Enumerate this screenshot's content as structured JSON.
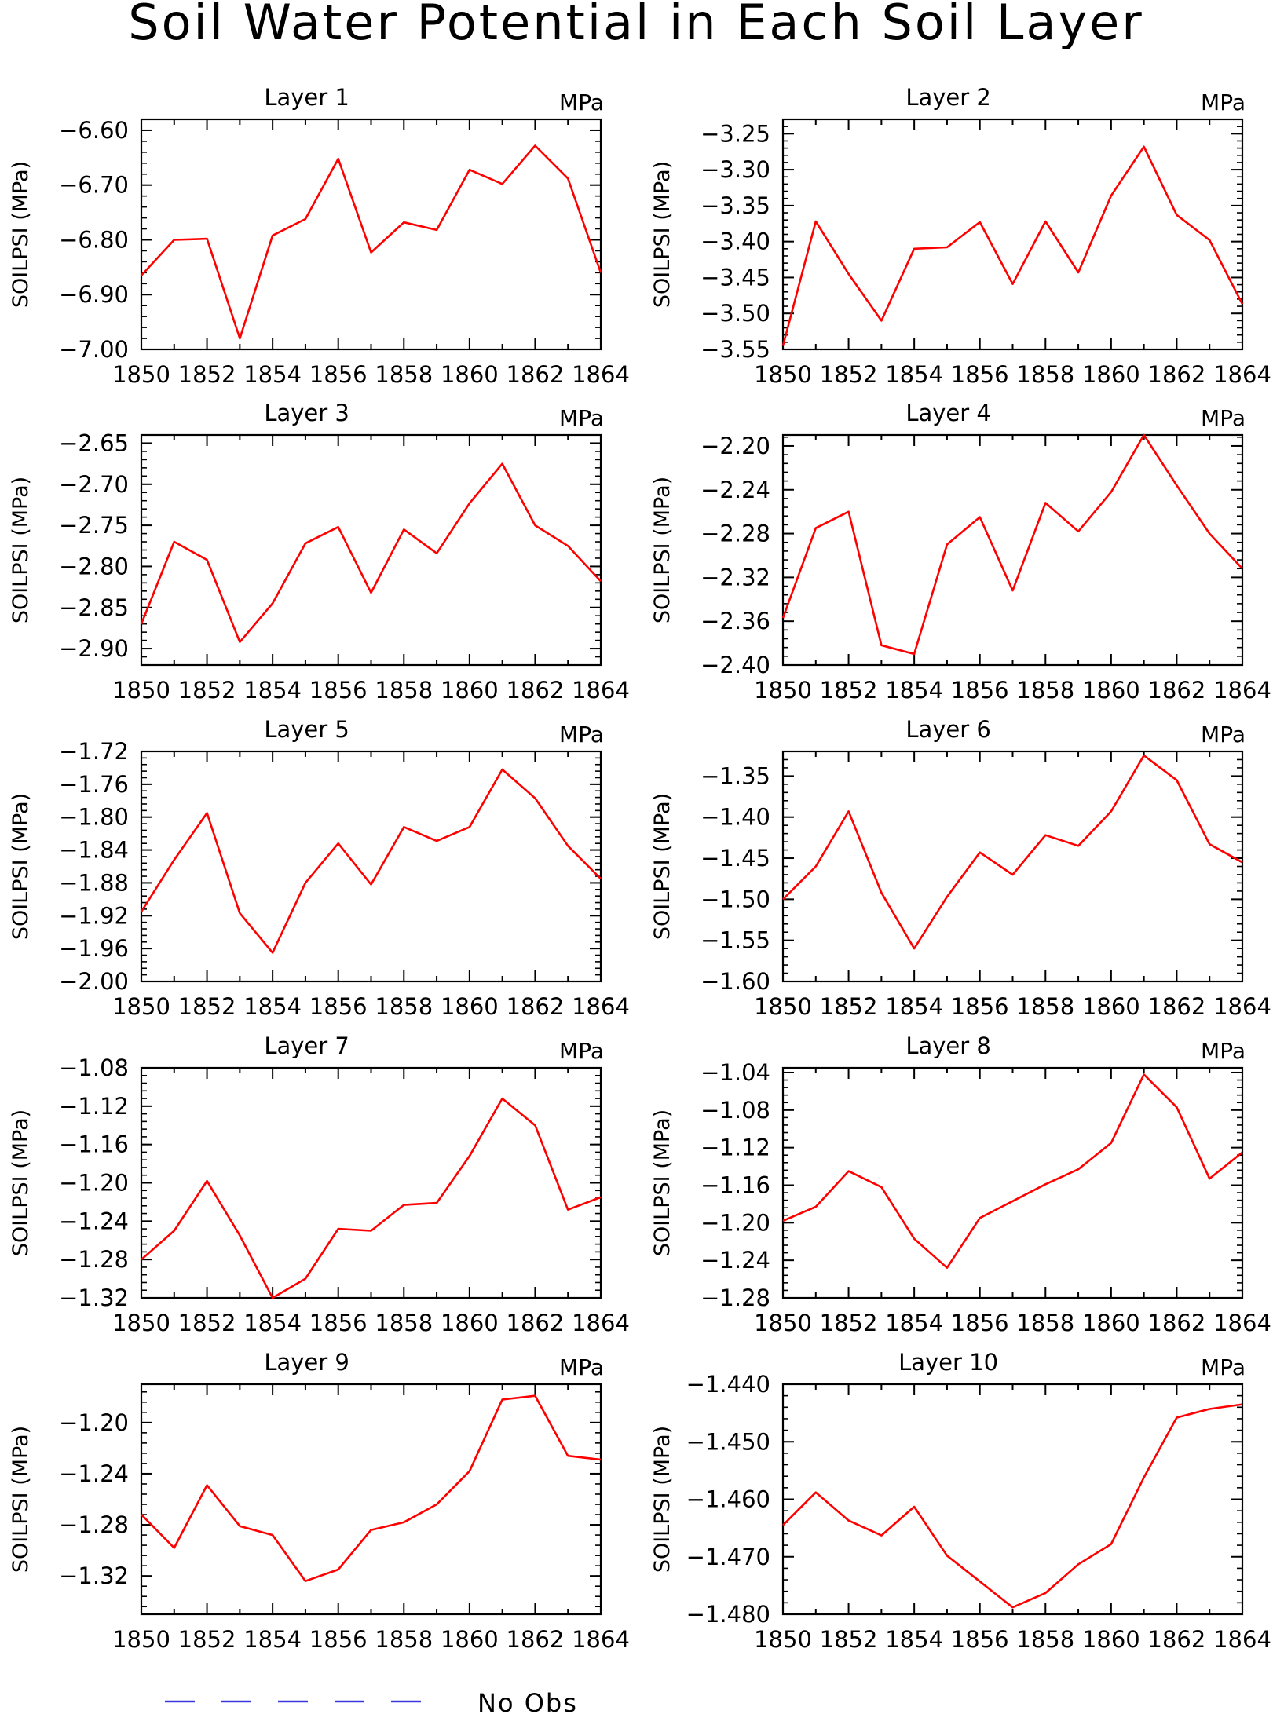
{
  "title": "Soil Water Potential in Each Soil Layer",
  "legend": {
    "label": "No Obs",
    "line_color": "#3a3adc",
    "line_style": "dashed"
  },
  "colors": {
    "series": "#ff0000",
    "axes": "#000000"
  },
  "chart_data": [
    {
      "type": "line",
      "title": "Layer 1",
      "units": "MPa",
      "ylabel": "SOILPSI (MPa)",
      "x": [
        1850,
        1851,
        1852,
        1853,
        1854,
        1855,
        1856,
        1857,
        1858,
        1859,
        1860,
        1861,
        1862,
        1863,
        1864
      ],
      "xticks": [
        1850,
        1852,
        1854,
        1856,
        1858,
        1860,
        1862,
        1864
      ],
      "ylim": [
        -7.0,
        -6.58
      ],
      "yticks": [
        -7.0,
        -6.9,
        -6.8,
        -6.7,
        -6.6
      ],
      "yticklabels": [
        "−7.00",
        "−6.90",
        "−6.80",
        "−6.70",
        "−6.60"
      ],
      "series": [
        {
          "values": [
            -6.865,
            -6.8,
            -6.798,
            -6.98,
            -6.792,
            -6.762,
            -6.652,
            -6.823,
            -6.768,
            -6.782,
            -6.672,
            -6.698,
            -6.628,
            -6.688,
            -6.86
          ]
        }
      ]
    },
    {
      "type": "line",
      "title": "Layer 2",
      "units": "MPa",
      "ylabel": "SOILPSI (MPa)",
      "x": [
        1850,
        1851,
        1852,
        1853,
        1854,
        1855,
        1856,
        1857,
        1858,
        1859,
        1860,
        1861,
        1862,
        1863,
        1864
      ],
      "xticks": [
        1850,
        1852,
        1854,
        1856,
        1858,
        1860,
        1862,
        1864
      ],
      "ylim": [
        -3.55,
        -3.23
      ],
      "yticks": [
        -3.55,
        -3.5,
        -3.45,
        -3.4,
        -3.35,
        -3.3,
        -3.25
      ],
      "yticklabels": [
        "−3.55",
        "−3.50",
        "−3.45",
        "−3.40",
        "−3.35",
        "−3.30",
        "−3.25"
      ],
      "series": [
        {
          "values": [
            -3.545,
            -3.372,
            -3.445,
            -3.51,
            -3.41,
            -3.408,
            -3.373,
            -3.459,
            -3.372,
            -3.443,
            -3.336,
            -3.268,
            -3.363,
            -3.398,
            -3.487
          ]
        }
      ]
    },
    {
      "type": "line",
      "title": "Layer 3",
      "units": "MPa",
      "ylabel": "SOILPSI (MPa)",
      "x": [
        1850,
        1851,
        1852,
        1853,
        1854,
        1855,
        1856,
        1857,
        1858,
        1859,
        1860,
        1861,
        1862,
        1863,
        1864
      ],
      "xticks": [
        1850,
        1852,
        1854,
        1856,
        1858,
        1860,
        1862,
        1864
      ],
      "ylim": [
        -2.92,
        -2.64
      ],
      "yticks": [
        -2.9,
        -2.85,
        -2.8,
        -2.75,
        -2.7,
        -2.65
      ],
      "yticklabels": [
        "−2.90",
        "−2.85",
        "−2.80",
        "−2.75",
        "−2.70",
        "−2.65"
      ],
      "series": [
        {
          "values": [
            -2.87,
            -2.77,
            -2.792,
            -2.892,
            -2.845,
            -2.772,
            -2.752,
            -2.832,
            -2.755,
            -2.784,
            -2.723,
            -2.675,
            -2.75,
            -2.775,
            -2.818
          ]
        }
      ]
    },
    {
      "type": "line",
      "title": "Layer 4",
      "units": "MPa",
      "ylabel": "SOILPSI (MPa)",
      "x": [
        1850,
        1851,
        1852,
        1853,
        1854,
        1855,
        1856,
        1857,
        1858,
        1859,
        1860,
        1861,
        1862,
        1863,
        1864
      ],
      "xticks": [
        1850,
        1852,
        1854,
        1856,
        1858,
        1860,
        1862,
        1864
      ],
      "ylim": [
        -2.4,
        -2.19
      ],
      "yticks": [
        -2.4,
        -2.36,
        -2.32,
        -2.28,
        -2.24,
        -2.2
      ],
      "yticklabels": [
        "−2.40",
        "−2.36",
        "−2.32",
        "−2.28",
        "−2.24",
        "−2.20"
      ],
      "series": [
        {
          "values": [
            -2.357,
            -2.275,
            -2.26,
            -2.382,
            -2.39,
            -2.29,
            -2.265,
            -2.332,
            -2.252,
            -2.278,
            -2.242,
            -2.19,
            -2.236,
            -2.28,
            -2.312
          ]
        }
      ]
    },
    {
      "type": "line",
      "title": "Layer 5",
      "units": "MPa",
      "ylabel": "SOILPSI (MPa)",
      "x": [
        1850,
        1851,
        1852,
        1853,
        1854,
        1855,
        1856,
        1857,
        1858,
        1859,
        1860,
        1861,
        1862,
        1863,
        1864
      ],
      "xticks": [
        1850,
        1852,
        1854,
        1856,
        1858,
        1860,
        1862,
        1864
      ],
      "ylim": [
        -2.0,
        -1.72
      ],
      "yticks": [
        -2.0,
        -1.96,
        -1.92,
        -1.88,
        -1.84,
        -1.8,
        -1.76,
        -1.72
      ],
      "yticklabels": [
        "−2.00",
        "−1.96",
        "−1.92",
        "−1.88",
        "−1.84",
        "−1.80",
        "−1.76",
        "−1.72"
      ],
      "series": [
        {
          "values": [
            -1.915,
            -1.852,
            -1.795,
            -1.917,
            -1.965,
            -1.88,
            -1.832,
            -1.882,
            -1.812,
            -1.829,
            -1.812,
            -1.742,
            -1.777,
            -1.835,
            -1.875
          ]
        }
      ]
    },
    {
      "type": "line",
      "title": "Layer 6",
      "units": "MPa",
      "ylabel": "SOILPSI (MPa)",
      "x": [
        1850,
        1851,
        1852,
        1853,
        1854,
        1855,
        1856,
        1857,
        1858,
        1859,
        1860,
        1861,
        1862,
        1863,
        1864
      ],
      "xticks": [
        1850,
        1852,
        1854,
        1856,
        1858,
        1860,
        1862,
        1864
      ],
      "ylim": [
        -1.6,
        -1.32
      ],
      "yticks": [
        -1.6,
        -1.55,
        -1.5,
        -1.45,
        -1.4,
        -1.35
      ],
      "yticklabels": [
        "−1.60",
        "−1.55",
        "−1.50",
        "−1.45",
        "−1.40",
        "−1.35"
      ],
      "series": [
        {
          "values": [
            -1.5,
            -1.46,
            -1.393,
            -1.492,
            -1.56,
            -1.497,
            -1.443,
            -1.47,
            -1.422,
            -1.435,
            -1.393,
            -1.325,
            -1.355,
            -1.433,
            -1.455
          ]
        }
      ]
    },
    {
      "type": "line",
      "title": "Layer 7",
      "units": "MPa",
      "ylabel": "SOILPSI (MPa)",
      "x": [
        1850,
        1851,
        1852,
        1853,
        1854,
        1855,
        1856,
        1857,
        1858,
        1859,
        1860,
        1861,
        1862,
        1863,
        1864
      ],
      "xticks": [
        1850,
        1852,
        1854,
        1856,
        1858,
        1860,
        1862,
        1864
      ],
      "ylim": [
        -1.32,
        -1.08
      ],
      "yticks": [
        -1.32,
        -1.28,
        -1.24,
        -1.2,
        -1.16,
        -1.12,
        -1.08
      ],
      "yticklabels": [
        "−1.32",
        "−1.28",
        "−1.24",
        "−1.20",
        "−1.16",
        "−1.12",
        "−1.08"
      ],
      "series": [
        {
          "values": [
            -1.28,
            -1.25,
            -1.198,
            -1.255,
            -1.32,
            -1.3,
            -1.248,
            -1.25,
            -1.223,
            -1.221,
            -1.172,
            -1.112,
            -1.14,
            -1.228,
            -1.215
          ]
        }
      ]
    },
    {
      "type": "line",
      "title": "Layer 8",
      "units": "MPa",
      "ylabel": "SOILPSI (MPa)",
      "x": [
        1850,
        1851,
        1852,
        1853,
        1854,
        1855,
        1856,
        1857,
        1858,
        1859,
        1860,
        1861,
        1862,
        1863,
        1864
      ],
      "xticks": [
        1850,
        1852,
        1854,
        1856,
        1858,
        1860,
        1862,
        1864
      ],
      "ylim": [
        -1.28,
        -1.035
      ],
      "yticks": [
        -1.28,
        -1.24,
        -1.2,
        -1.16,
        -1.12,
        -1.08,
        -1.04
      ],
      "yticklabels": [
        "−1.28",
        "−1.24",
        "−1.20",
        "−1.16",
        "−1.12",
        "−1.08",
        "−1.04"
      ],
      "series": [
        {
          "values": [
            -1.198,
            -1.183,
            -1.145,
            -1.162,
            -1.217,
            -1.248,
            -1.195,
            -1.177,
            -1.159,
            -1.143,
            -1.115,
            -1.042,
            -1.077,
            -1.153,
            -1.125
          ]
        }
      ]
    },
    {
      "type": "line",
      "title": "Layer 9",
      "units": "MPa",
      "ylabel": "SOILPSI (MPa)",
      "x": [
        1850,
        1851,
        1852,
        1853,
        1854,
        1855,
        1856,
        1857,
        1858,
        1859,
        1860,
        1861,
        1862,
        1863,
        1864
      ],
      "xticks": [
        1850,
        1852,
        1854,
        1856,
        1858,
        1860,
        1862,
        1864
      ],
      "ylim": [
        -1.35,
        -1.17
      ],
      "yticks": [
        -1.32,
        -1.28,
        -1.24,
        -1.2
      ],
      "yticklabels": [
        "−1.32",
        "−1.28",
        "−1.24",
        "−1.20"
      ],
      "series": [
        {
          "values": [
            -1.272,
            -1.298,
            -1.249,
            -1.281,
            -1.288,
            -1.324,
            -1.315,
            -1.284,
            -1.278,
            -1.264,
            -1.238,
            -1.182,
            -1.179,
            -1.226,
            -1.229
          ]
        }
      ]
    },
    {
      "type": "line",
      "title": "Layer 10",
      "units": "MPa",
      "ylabel": "SOILPSI (MPa)",
      "x": [
        1850,
        1851,
        1852,
        1853,
        1854,
        1855,
        1856,
        1857,
        1858,
        1859,
        1860,
        1861,
        1862,
        1863,
        1864
      ],
      "xticks": [
        1850,
        1852,
        1854,
        1856,
        1858,
        1860,
        1862,
        1864
      ],
      "ylim": [
        -1.48,
        -1.44
      ],
      "yticks": [
        -1.48,
        -1.47,
        -1.46,
        -1.45,
        -1.44
      ],
      "yticklabels": [
        "−1.480",
        "−1.470",
        "−1.460",
        "−1.450",
        "−1.440"
      ],
      "series": [
        {
          "values": [
            -1.4645,
            -1.4588,
            -1.4637,
            -1.4663,
            -1.4613,
            -1.4698,
            -1.4743,
            -1.4788,
            -1.4763,
            -1.4713,
            -1.4678,
            -1.4562,
            -1.4458,
            -1.4443,
            -1.4435
          ]
        }
      ]
    }
  ]
}
